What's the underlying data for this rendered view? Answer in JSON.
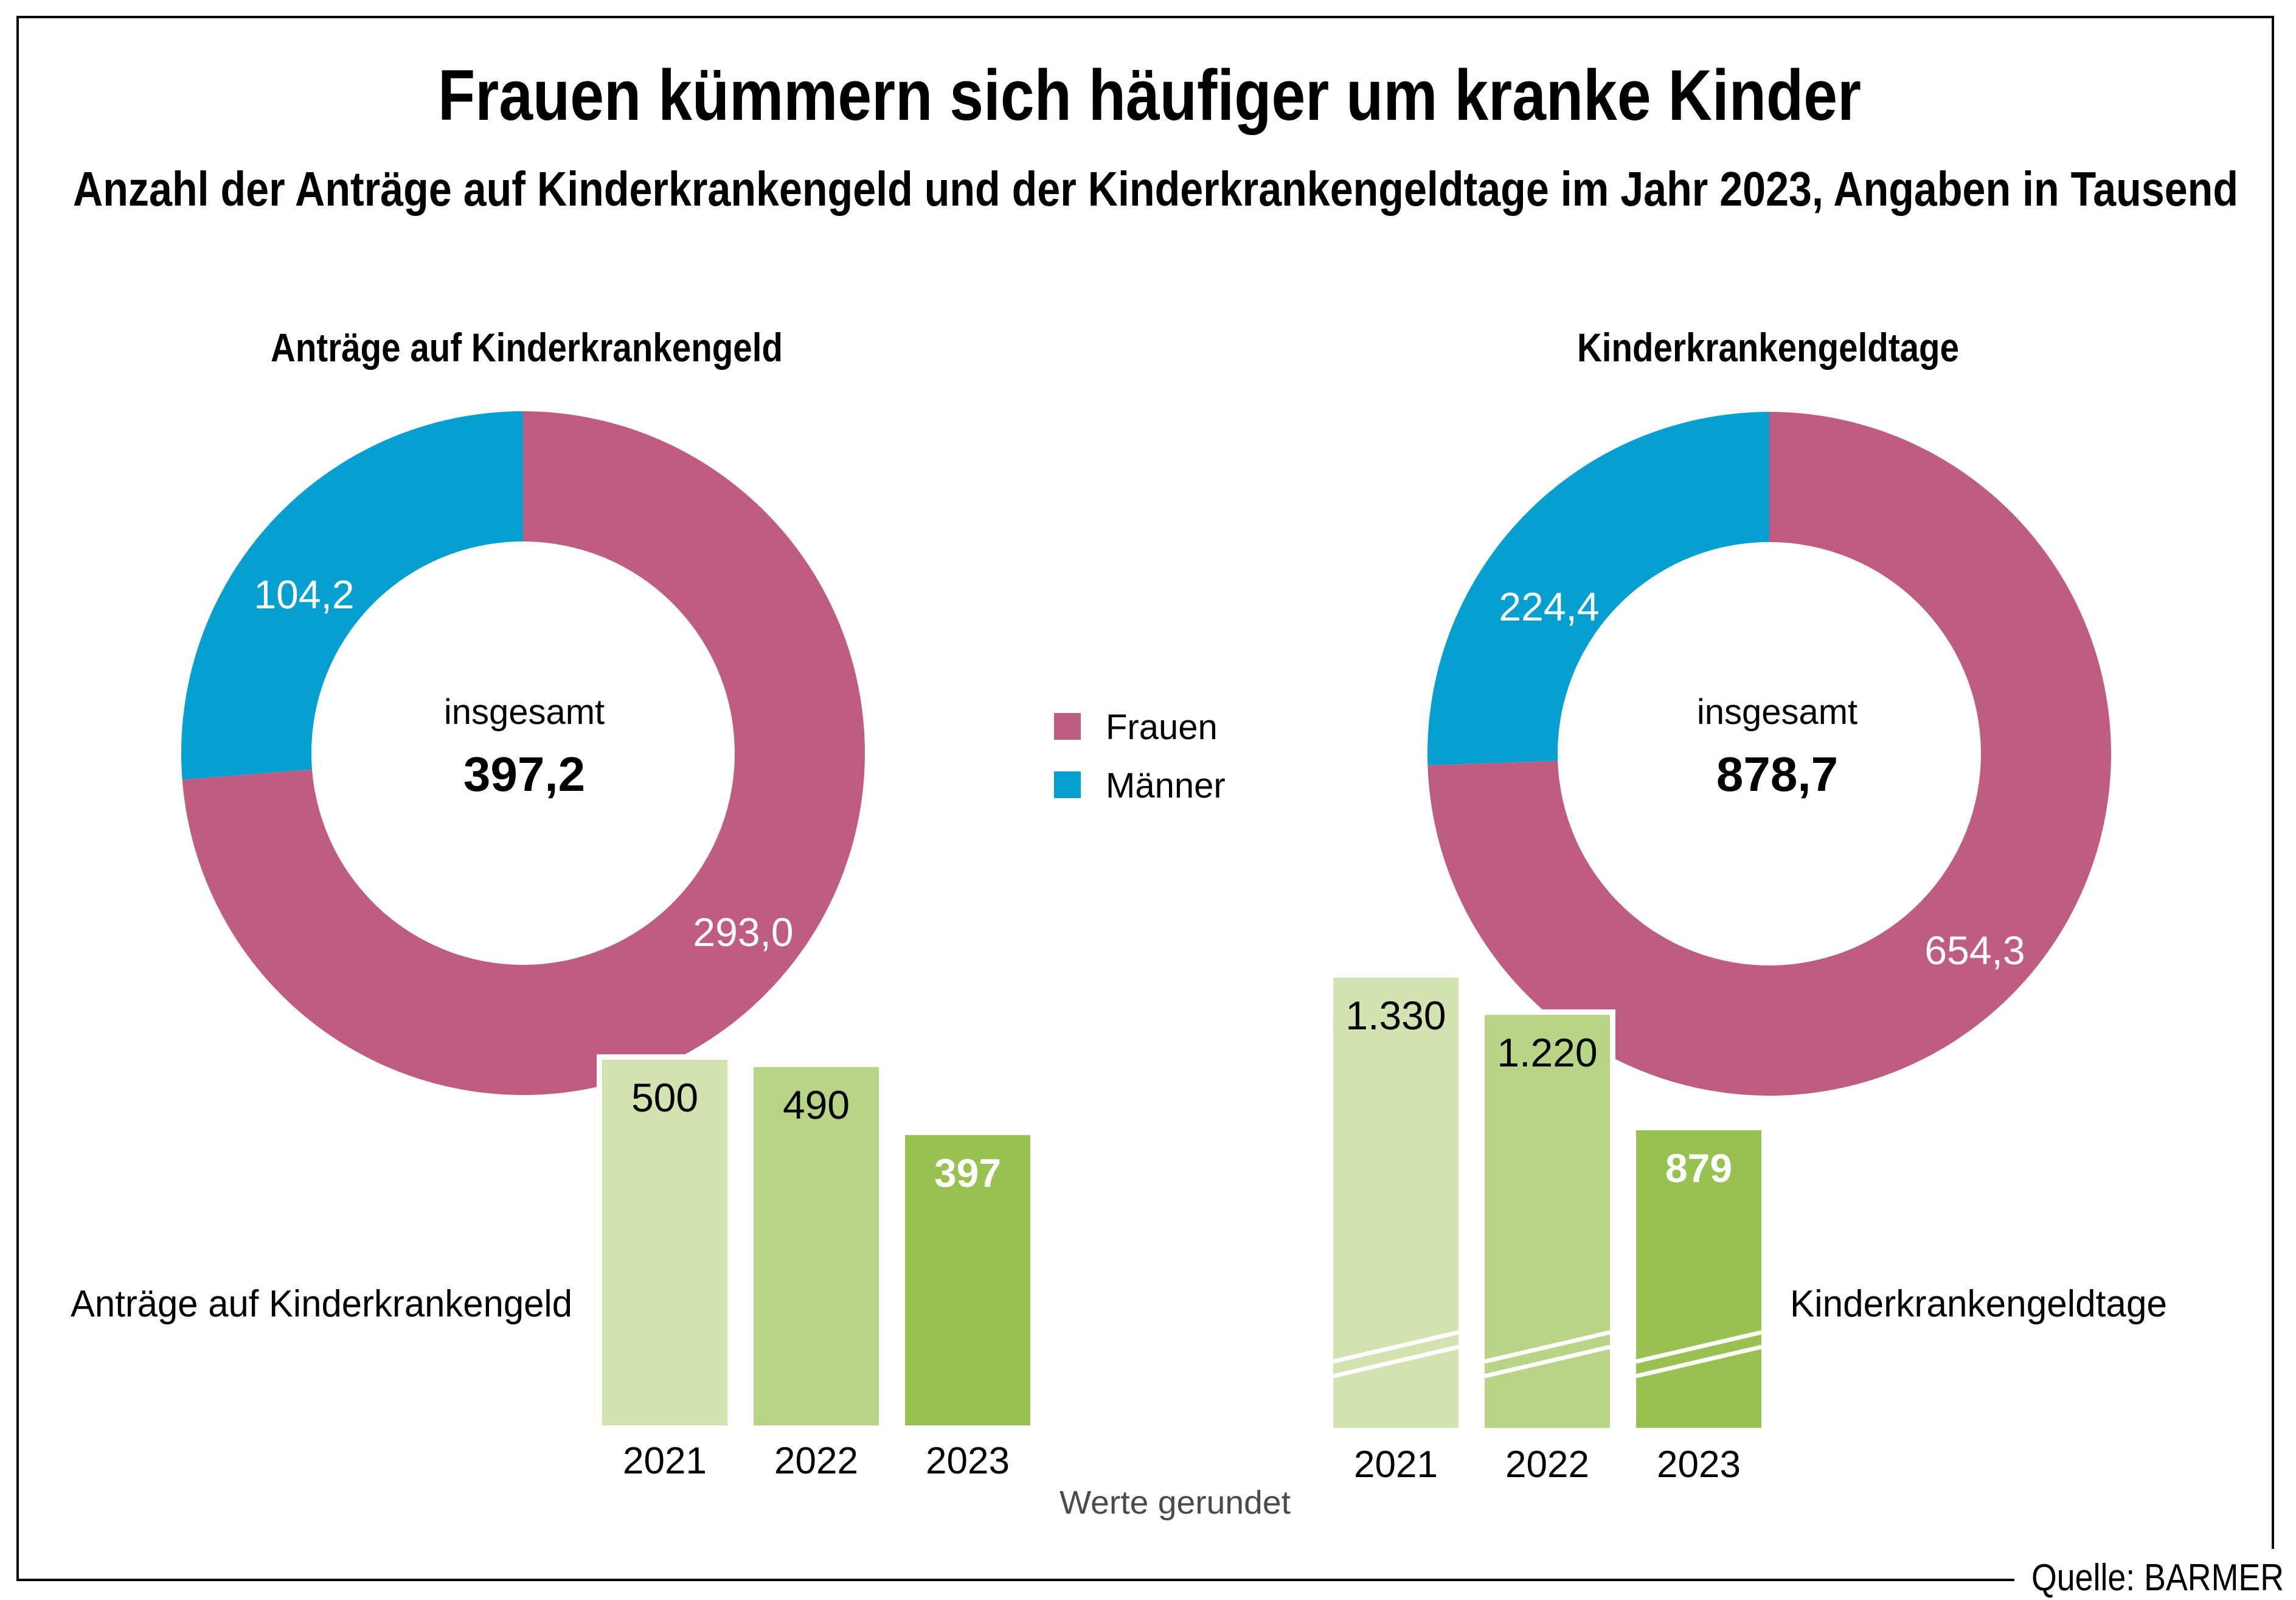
{
  "title": "Frauen kümmern sich häufiger um kranke Kinder",
  "subtitle": "Anzahl der Anträge auf Kinderkrankengeld und der Kinderkrankengeldtage im Jahr 2023, Angaben in Tausend",
  "colors": {
    "frauen": "#be5c82",
    "maenner": "#06a0d0",
    "bar_2021": "#d2e3b0",
    "bar_2022": "#b8d487",
    "bar_2023": "#97c150"
  },
  "legend": [
    {
      "label": "Frauen",
      "color_key": "frauen"
    },
    {
      "label": "Männer",
      "color_key": "maenner"
    }
  ],
  "note": "Werte gerundet",
  "source": "Quelle: BARMER",
  "chart_data": [
    {
      "type": "pie",
      "variant": "donut",
      "title": "Anträge auf Kinderkrankengeld",
      "center_label": "insgesamt",
      "center_value": "397,2",
      "total": 397.2,
      "slices": [
        {
          "name": "Frauen",
          "value": 293.0,
          "label": "293,0"
        },
        {
          "name": "Männer",
          "value": 104.2,
          "label": "104,2"
        }
      ],
      "unit": "Tausend"
    },
    {
      "type": "pie",
      "variant": "donut",
      "title": "Kinderkrankengeldtage",
      "center_label": "insgesamt",
      "center_value": "878,7",
      "total": 878.7,
      "slices": [
        {
          "name": "Frauen",
          "value": 654.3,
          "label": "654,3"
        },
        {
          "name": "Männer",
          "value": 224.4,
          "label": "224,4"
        }
      ],
      "unit": "Tausend"
    },
    {
      "type": "bar",
      "title": "Anträge auf Kinderkrankengeld",
      "categories": [
        "2021",
        "2022",
        "2023"
      ],
      "values": [
        500,
        490,
        397
      ],
      "labels": [
        "500",
        "490",
        "397"
      ],
      "axis_break": false,
      "ylim": [
        0,
        500
      ]
    },
    {
      "type": "bar",
      "title": "Kinderkrankengeldtage",
      "categories": [
        "2021",
        "2022",
        "2023"
      ],
      "values": [
        1330,
        1220,
        879
      ],
      "labels": [
        "1.330",
        "1.220",
        "879"
      ],
      "axis_break": true,
      "ylim": [
        0,
        1330
      ]
    }
  ]
}
